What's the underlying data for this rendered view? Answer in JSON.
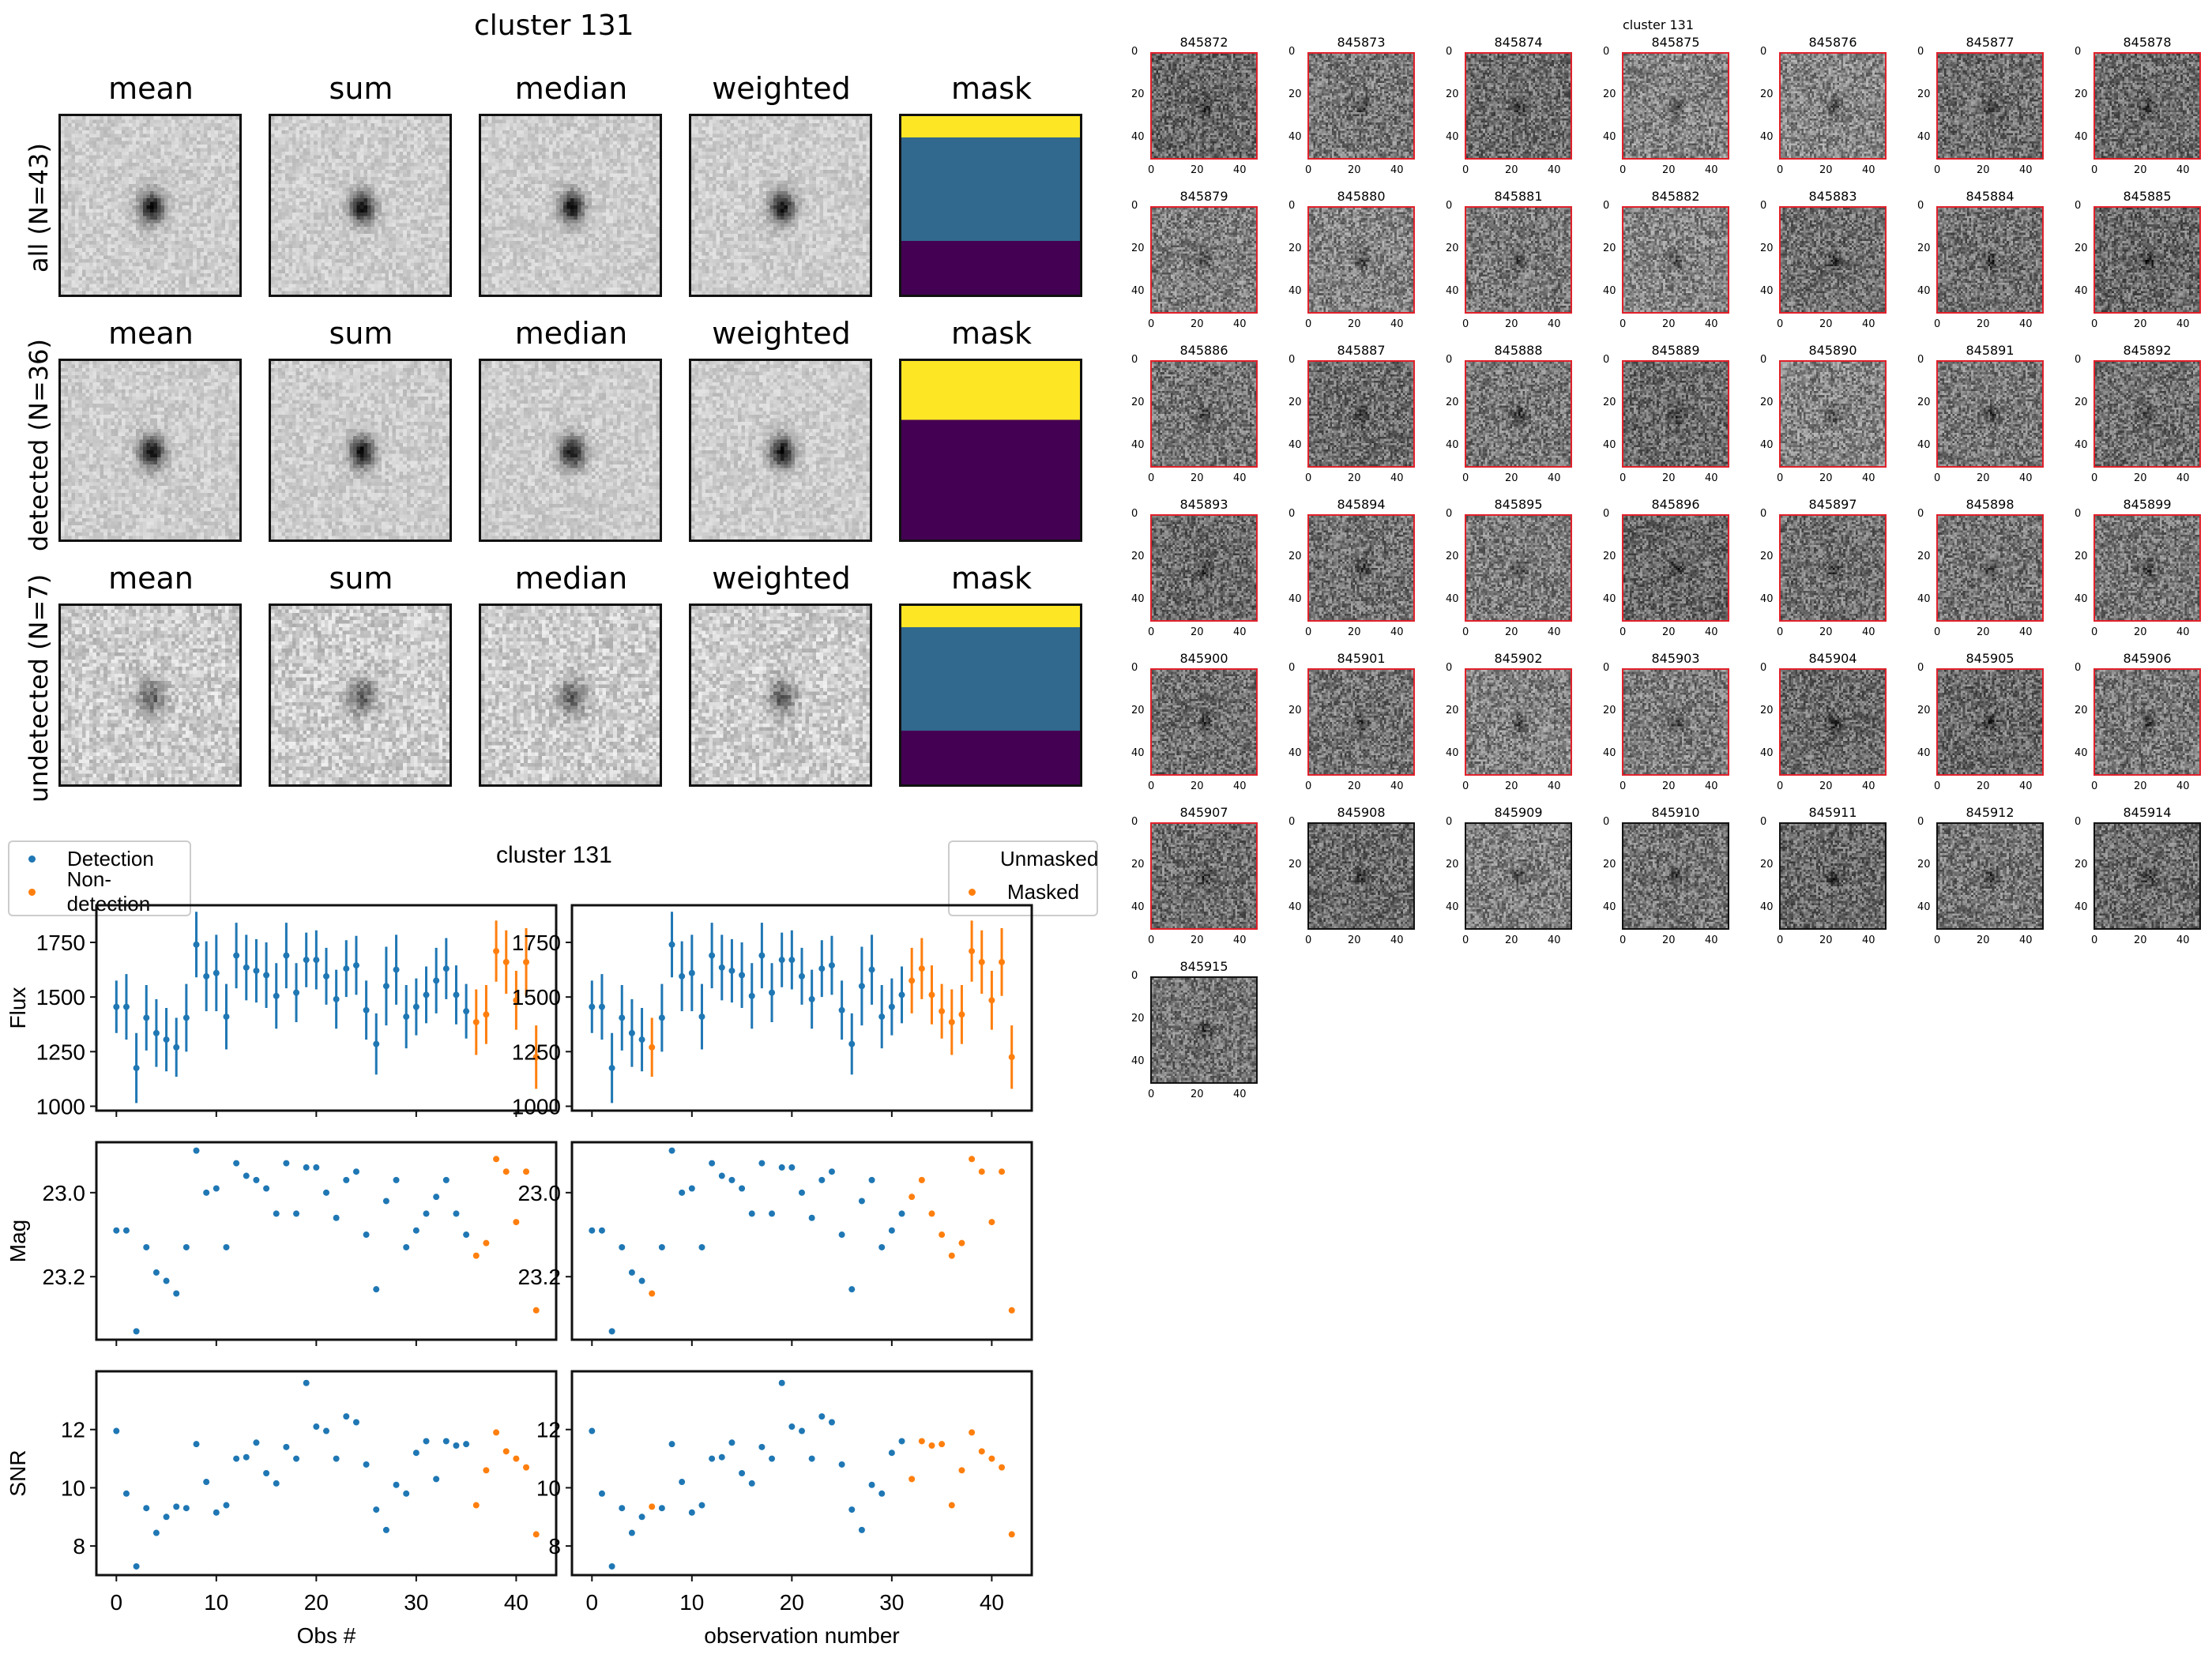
{
  "stamps_panel": {
    "title": "cluster 131",
    "column_titles": [
      "mean",
      "sum",
      "median",
      "weighted",
      "mask"
    ],
    "rows": [
      {
        "label": "all (N=43)",
        "mask_style": "all"
      },
      {
        "label": "detected (N=36)",
        "mask_style": "detected"
      },
      {
        "label": "undetected (N=7)",
        "mask_style": "all"
      }
    ]
  },
  "thumbnails_panel": {
    "title": "cluster 131",
    "axis_ticks": [
      "0",
      "20",
      "40"
    ],
    "items": [
      {
        "id": "845872",
        "masked": true
      },
      {
        "id": "845873",
        "masked": true
      },
      {
        "id": "845874",
        "masked": true
      },
      {
        "id": "845875",
        "masked": true
      },
      {
        "id": "845876",
        "masked": true
      },
      {
        "id": "845877",
        "masked": true
      },
      {
        "id": "845878",
        "masked": true
      },
      {
        "id": "845879",
        "masked": true
      },
      {
        "id": "845880",
        "masked": true
      },
      {
        "id": "845881",
        "masked": true
      },
      {
        "id": "845882",
        "masked": true
      },
      {
        "id": "845883",
        "masked": true
      },
      {
        "id": "845884",
        "masked": true
      },
      {
        "id": "845885",
        "masked": true
      },
      {
        "id": "845886",
        "masked": true
      },
      {
        "id": "845887",
        "masked": true
      },
      {
        "id": "845888",
        "masked": true
      },
      {
        "id": "845889",
        "masked": true
      },
      {
        "id": "845890",
        "masked": true
      },
      {
        "id": "845891",
        "masked": true
      },
      {
        "id": "845892",
        "masked": true
      },
      {
        "id": "845893",
        "masked": true
      },
      {
        "id": "845894",
        "masked": true
      },
      {
        "id": "845895",
        "masked": true
      },
      {
        "id": "845896",
        "masked": true
      },
      {
        "id": "845897",
        "masked": true
      },
      {
        "id": "845898",
        "masked": true
      },
      {
        "id": "845899",
        "masked": true
      },
      {
        "id": "845900",
        "masked": true
      },
      {
        "id": "845901",
        "masked": true
      },
      {
        "id": "845902",
        "masked": true
      },
      {
        "id": "845903",
        "masked": true
      },
      {
        "id": "845904",
        "masked": true
      },
      {
        "id": "845905",
        "masked": true
      },
      {
        "id": "845906",
        "masked": true
      },
      {
        "id": "845907",
        "masked": true
      },
      {
        "id": "845908",
        "masked": false
      },
      {
        "id": "845909",
        "masked": false
      },
      {
        "id": "845910",
        "masked": false
      },
      {
        "id": "845911",
        "masked": false
      },
      {
        "id": "845912",
        "masked": false
      },
      {
        "id": "845914",
        "masked": false
      },
      {
        "id": "845915",
        "masked": false
      }
    ]
  },
  "colors": {
    "blue": "#1f77b4",
    "orange": "#ff7f0e",
    "mask_yellow": "#fde725",
    "mask_teal": "#31688e",
    "mask_purple": "#440154",
    "thumb_border_masked": "#e0202a",
    "thumb_border_unmasked": "#111111"
  },
  "chart_data": [
    {
      "type": "scatter",
      "title": "cluster 131",
      "legend": {
        "entries": [
          "Detection",
          "Non-detection"
        ],
        "placement": "top-left"
      },
      "x": [
        0,
        1,
        2,
        3,
        4,
        5,
        6,
        7,
        8,
        9,
        10,
        11,
        12,
        13,
        14,
        15,
        16,
        17,
        18,
        19,
        20,
        21,
        22,
        23,
        24,
        25,
        26,
        27,
        28,
        29,
        30,
        31,
        32,
        33,
        34,
        35,
        36,
        37,
        38,
        39,
        40,
        41,
        42
      ],
      "highlight_indices": [
        36,
        37,
        38,
        39,
        40,
        41,
        42
      ],
      "xlabel": "Obs #",
      "xticks": [
        0,
        10,
        20,
        30,
        40
      ],
      "xlim": [
        -2,
        44
      ],
      "panels": [
        {
          "ylabel": "Flux",
          "ylim": [
            980,
            1920
          ],
          "yticks": [
            1000,
            1250,
            1500,
            1750
          ],
          "tick_labels": [
            "1000",
            "1250",
            "1500",
            "1750"
          ],
          "errorbars": true
        },
        {
          "ylabel": "Mag",
          "ylim": [
            23.35,
            22.88
          ],
          "inverted": true,
          "yticks": [
            23.0,
            23.2
          ],
          "tick_labels": [
            "23.0",
            "23.2"
          ]
        },
        {
          "ylabel": "SNR",
          "ylim": [
            7.0,
            14.0
          ],
          "yticks": [
            8,
            10,
            12
          ],
          "tick_labels": [
            "8",
            "10",
            "12"
          ]
        }
      ]
    },
    {
      "type": "scatter",
      "title": "",
      "legend": {
        "entries": [
          "Unmasked",
          "Masked"
        ],
        "placement": "top-right"
      },
      "x": [
        0,
        1,
        2,
        3,
        4,
        5,
        6,
        7,
        8,
        9,
        10,
        11,
        12,
        13,
        14,
        15,
        16,
        17,
        18,
        19,
        20,
        21,
        22,
        23,
        24,
        25,
        26,
        27,
        28,
        29,
        30,
        31,
        32,
        33,
        34,
        35,
        36,
        37,
        38,
        39,
        40,
        41,
        42
      ],
      "highlight_indices": [
        6,
        32,
        33,
        34,
        35,
        36,
        37,
        38,
        39,
        40,
        41,
        42
      ],
      "xlabel": "observation number",
      "xticks": [
        0,
        10,
        20,
        30,
        40
      ],
      "xlim": [
        -2,
        44
      ],
      "panels": [
        {
          "ylabel": "",
          "ylim": [
            980,
            1920
          ],
          "yticks": [
            1000,
            1250,
            1500,
            1750
          ],
          "tick_labels": [
            "1000",
            "1250",
            "1500",
            "1750"
          ],
          "errorbars": true
        },
        {
          "ylabel": "",
          "ylim": [
            23.35,
            22.88
          ],
          "inverted": true,
          "yticks": [
            23.0,
            23.2
          ],
          "tick_labels": [
            "23.0",
            "23.2"
          ]
        },
        {
          "ylabel": "",
          "ylim": [
            7.0,
            14.0
          ],
          "yticks": [
            8,
            10,
            12
          ],
          "tick_labels": [
            "8",
            "10",
            "12"
          ]
        }
      ]
    }
  ],
  "series": {
    "flux": [
      1455,
      1455,
      1175,
      1405,
      1335,
      1305,
      1270,
      1405,
      1740,
      1595,
      1610,
      1410,
      1690,
      1635,
      1620,
      1600,
      1505,
      1690,
      1520,
      1670,
      1670,
      1595,
      1490,
      1630,
      1645,
      1440,
      1285,
      1550,
      1625,
      1410,
      1455,
      1510,
      1575,
      1630,
      1510,
      1435,
      1385,
      1420,
      1710,
      1660,
      1485,
      1660,
      1225
    ],
    "flux_err": [
      120,
      150,
      160,
      150,
      155,
      145,
      135,
      155,
      150,
      160,
      175,
      150,
      150,
      150,
      145,
      150,
      150,
      150,
      135,
      125,
      135,
      130,
      135,
      130,
      135,
      135,
      140,
      180,
      160,
      145,
      130,
      130,
      150,
      140,
      135,
      125,
      150,
      135,
      140,
      145,
      135,
      155,
      145
    ],
    "mag": [
      23.09,
      23.09,
      23.33,
      23.13,
      23.19,
      23.21,
      23.24,
      23.13,
      22.9,
      23.0,
      22.99,
      23.13,
      22.93,
      22.96,
      22.97,
      22.99,
      23.05,
      22.93,
      23.05,
      22.94,
      22.94,
      23.0,
      23.06,
      22.97,
      22.95,
      23.1,
      23.23,
      23.02,
      22.97,
      23.13,
      23.09,
      23.05,
      23.01,
      22.97,
      23.05,
      23.1,
      23.15,
      23.12,
      22.92,
      22.95,
      23.07,
      22.95,
      23.28
    ],
    "snr": [
      11.95,
      9.8,
      7.3,
      9.3,
      8.45,
      9.0,
      9.35,
      9.3,
      11.5,
      10.2,
      9.15,
      9.4,
      11.0,
      11.05,
      11.55,
      10.5,
      10.15,
      11.4,
      11.0,
      13.6,
      12.1,
      11.95,
      11.0,
      12.45,
      12.25,
      10.8,
      9.25,
      8.55,
      10.1,
      9.8,
      11.2,
      11.6,
      10.3,
      11.6,
      11.45,
      11.5,
      9.4,
      10.6,
      11.9,
      11.25,
      11.0,
      10.7,
      8.4
    ]
  }
}
